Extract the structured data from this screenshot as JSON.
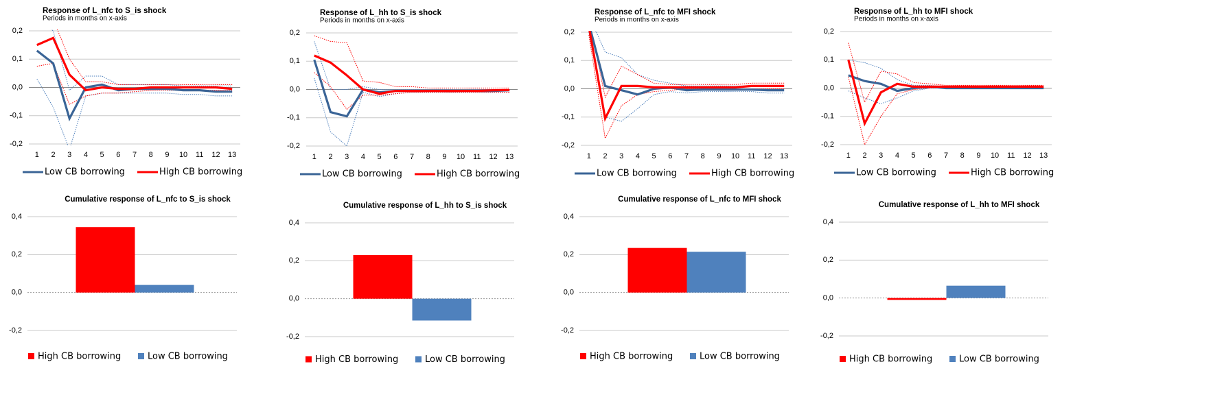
{
  "chart_data": [
    {
      "type": "line",
      "title": "Response  of L_nfc to S_is shock",
      "subtitle": "Periods in months on x-axis",
      "categories": [
        "1",
        "2",
        "3",
        "4",
        "5",
        "6",
        "7",
        "8",
        "9",
        "10",
        "11",
        "12",
        "13"
      ],
      "ylim": [
        -0.2,
        0.2
      ],
      "yticks": [
        {
          "value": -0.2,
          "label": "-0,2"
        },
        {
          "value": -0.1,
          "label": "-0,1"
        },
        {
          "value": 0,
          "label": "0,0"
        },
        {
          "value": 0.1,
          "label": "0,1"
        },
        {
          "value": 0.2,
          "label": "0,2"
        }
      ],
      "grid": true,
      "series": [
        {
          "color": "#4f81bd",
          "line_style": "dotted",
          "values": [
            0.24,
            0.2,
            -0.01,
            0.04,
            0.04,
            0.01,
            0.01,
            0.01,
            0.01,
            0.005,
            0.005,
            0.005,
            0.005
          ]
        },
        {
          "color": "#4f81bd",
          "line_style": "dotted",
          "values": [
            0.03,
            -0.07,
            -0.22,
            -0.03,
            -0.02,
            -0.02,
            -0.02,
            -0.02,
            -0.02,
            -0.025,
            -0.025,
            -0.03,
            -0.03
          ]
        },
        {
          "color": "#ff0000",
          "line_style": "dotted",
          "values": [
            0.21,
            0.24,
            0.1,
            0.02,
            0.02,
            0.01,
            0.01,
            0.01,
            0.01,
            0.01,
            0.01,
            0.01,
            0.01
          ]
        },
        {
          "color": "#ff0000",
          "line_style": "dotted",
          "values": [
            0.075,
            0.085,
            -0.06,
            -0.03,
            -0.02,
            -0.02,
            -0.015,
            -0.01,
            -0.01,
            -0.01,
            -0.01,
            -0.01,
            -0.01
          ]
        },
        {
          "name": "Low CB borrowing",
          "color": "#3a6496",
          "line_style": "solid",
          "values": [
            0.13,
            0.085,
            -0.11,
            0.0,
            0.01,
            -0.01,
            -0.005,
            -0.005,
            -0.005,
            -0.01,
            -0.01,
            -0.015,
            -0.015
          ]
        },
        {
          "name": "High CB borrowing",
          "color": "#ff0000",
          "line_style": "solid",
          "values": [
            0.15,
            0.175,
            0.045,
            -0.01,
            0.0,
            -0.005,
            -0.005,
            0,
            0,
            0,
            0,
            0,
            -0.005
          ]
        }
      ]
    },
    {
      "type": "line",
      "title": "Response  of L_hh to S_is shock",
      "subtitle": "Periods in months on x-axis",
      "categories": [
        "1",
        "2",
        "3",
        "4",
        "5",
        "6",
        "7",
        "8",
        "9",
        "10",
        "11",
        "12",
        "13"
      ],
      "ylim": [
        -0.2,
        0.2
      ],
      "yticks": [
        {
          "value": -0.2,
          "label": "-0,2"
        },
        {
          "value": -0.1,
          "label": "-0,1"
        },
        {
          "value": 0,
          "label": "0,0"
        },
        {
          "value": 0.1,
          "label": "0,1"
        },
        {
          "value": 0.2,
          "label": "0,2"
        }
      ],
      "grid": true,
      "series": [
        {
          "color": "#4f81bd",
          "line_style": "dotted",
          "values": [
            0.17,
            0.0,
            0.0,
            0.01,
            0.0,
            0,
            0,
            0,
            0,
            0,
            0,
            0,
            0
          ]
        },
        {
          "color": "#4f81bd",
          "line_style": "dotted",
          "values": [
            0.04,
            -0.15,
            -0.2,
            -0.01,
            -0.025,
            -0.015,
            -0.01,
            -0.01,
            -0.01,
            -0.01,
            -0.01,
            -0.01,
            -0.01
          ]
        },
        {
          "color": "#ff0000",
          "line_style": "dotted",
          "values": [
            0.19,
            0.17,
            0.165,
            0.03,
            0.025,
            0.01,
            0.01,
            0.005,
            0.005,
            0.005,
            0.005,
            0.005,
            0.005
          ]
        },
        {
          "color": "#ff0000",
          "line_style": "dotted",
          "values": [
            0.06,
            0.01,
            -0.07,
            -0.02,
            -0.02,
            -0.015,
            -0.01,
            -0.01,
            -0.01,
            -0.01,
            -0.01,
            -0.01,
            -0.01
          ]
        },
        {
          "name": "Low CB borrowing",
          "color": "#3a6496",
          "line_style": "solid",
          "values": [
            0.105,
            -0.08,
            -0.095,
            0.0,
            -0.01,
            -0.005,
            -0.005,
            -0.005,
            -0.005,
            -0.005,
            -0.005,
            -0.005,
            -0.003
          ]
        },
        {
          "name": "High CB borrowing",
          "color": "#ff0000",
          "line_style": "solid",
          "values": [
            0.12,
            0.095,
            0.05,
            0.0,
            -0.015,
            -0.005,
            -0.005,
            -0.005,
            -0.005,
            -0.005,
            -0.005,
            -0.003,
            -0.002
          ]
        }
      ]
    },
    {
      "type": "line",
      "title": "Response  of L_nfc to MFI shock",
      "subtitle": "Periods in months on x-axis",
      "categories": [
        "1",
        "2",
        "3",
        "4",
        "5",
        "6",
        "7",
        "8",
        "9",
        "10",
        "11",
        "12",
        "13"
      ],
      "ylim": [
        -0.2,
        0.2
      ],
      "yticks": [
        {
          "value": -0.2,
          "label": "-0,2"
        },
        {
          "value": -0.1,
          "label": "-0,1"
        },
        {
          "value": 0,
          "label": "0,0"
        },
        {
          "value": 0.1,
          "label": "0,1"
        },
        {
          "value": 0.2,
          "label": "0,2"
        }
      ],
      "grid": true,
      "series": [
        {
          "color": "#4f81bd",
          "line_style": "dotted",
          "values": [
            0.26,
            0.13,
            0.11,
            0.05,
            0.03,
            0.02,
            0.01,
            0.01,
            0.01,
            0.01,
            0.01,
            0.01,
            0.01
          ]
        },
        {
          "color": "#4f81bd",
          "line_style": "dotted",
          "values": [
            0.2,
            -0.1,
            -0.115,
            -0.07,
            -0.02,
            -0.01,
            -0.015,
            -0.01,
            -0.01,
            -0.01,
            -0.01,
            -0.015,
            -0.015
          ]
        },
        {
          "color": "#ff0000",
          "line_style": "dotted",
          "values": [
            0.25,
            -0.03,
            0.08,
            0.05,
            0.02,
            0.015,
            0.015,
            0.015,
            0.015,
            0.015,
            0.02,
            0.02,
            0.02
          ]
        },
        {
          "color": "#ff0000",
          "line_style": "dotted",
          "values": [
            0.19,
            -0.175,
            -0.06,
            -0.02,
            -0.01,
            -0.005,
            0,
            0,
            0,
            0,
            0,
            0,
            0
          ]
        },
        {
          "name": "Low CB borrowing",
          "color": "#3a6496",
          "line_style": "solid",
          "values": [
            0.23,
            0.01,
            -0.005,
            -0.02,
            0.0,
            0.005,
            -0.005,
            -0.003,
            -0.003,
            -0.003,
            -0.003,
            -0.005,
            -0.005
          ]
        },
        {
          "name": "High CB borrowing",
          "color": "#ff0000",
          "line_style": "solid",
          "values": [
            0.22,
            -0.105,
            0.01,
            0.01,
            0.005,
            0.005,
            0.005,
            0.005,
            0.005,
            0.005,
            0.01,
            0.01,
            0.01
          ]
        }
      ]
    },
    {
      "type": "line",
      "title": "Response  of L_hh to MFI shock",
      "subtitle": "Periods in months on x-axis",
      "categories": [
        "1",
        "2",
        "3",
        "4",
        "5",
        "6",
        "7",
        "8",
        "9",
        "10",
        "11",
        "12",
        "13"
      ],
      "ylim": [
        -0.2,
        0.2
      ],
      "yticks": [
        {
          "value": -0.2,
          "label": "-0,2"
        },
        {
          "value": -0.1,
          "label": "-0,1"
        },
        {
          "value": 0,
          "label": "0,0"
        },
        {
          "value": 0.1,
          "label": "0,1"
        },
        {
          "value": 0.2,
          "label": "0,2"
        }
      ],
      "grid": true,
      "series": [
        {
          "color": "#4f81bd",
          "line_style": "dotted",
          "values": [
            0.1,
            0.09,
            0.07,
            0.03,
            0.01,
            0.01,
            0.005,
            0.005,
            0.005,
            0.005,
            0.005,
            0.005,
            0.005
          ]
        },
        {
          "color": "#4f81bd",
          "line_style": "dotted",
          "values": [
            -0.01,
            -0.035,
            -0.055,
            -0.035,
            -0.01,
            0,
            0,
            0,
            0,
            0,
            0,
            0,
            0
          ]
        },
        {
          "color": "#ff0000",
          "line_style": "dotted",
          "values": [
            0.16,
            -0.05,
            0.06,
            0.05,
            0.02,
            0.015,
            0.01,
            0.01,
            0.01,
            0.01,
            0.01,
            0.01,
            0.01
          ]
        },
        {
          "color": "#ff0000",
          "line_style": "dotted",
          "values": [
            0.04,
            -0.2,
            -0.1,
            -0.02,
            -0.005,
            0,
            0,
            0,
            0,
            0,
            0,
            0,
            0
          ]
        },
        {
          "name": "Low CB borrowing",
          "color": "#3a6496",
          "line_style": "solid",
          "values": [
            0.045,
            0.025,
            0.015,
            -0.01,
            0.0,
            0.005,
            0.0,
            0,
            0,
            0,
            0,
            0,
            0
          ]
        },
        {
          "name": "High CB borrowing",
          "color": "#ff0000",
          "line_style": "solid",
          "values": [
            0.1,
            -0.125,
            -0.015,
            0.015,
            0.005,
            0.005,
            0.005,
            0.005,
            0.005,
            0.005,
            0.005,
            0.005,
            0.005
          ]
        }
      ]
    },
    {
      "type": "bar",
      "title": "Cumulative response  of L_nfc to S_is shock",
      "ylim": [
        -0.2,
        0.4
      ],
      "yticks": [
        {
          "value": -0.2,
          "label": "-0,2"
        },
        {
          "value": 0,
          "label": "0,0"
        },
        {
          "value": 0.2,
          "label": "0,2"
        },
        {
          "value": 0.4,
          "label": "0,4"
        }
      ],
      "grid": true,
      "series": [
        {
          "name": "High CB borrowing",
          "color": "#ff0000",
          "values": [
            0.345
          ]
        },
        {
          "name": "Low CB borrowing",
          "color": "#4f81bd",
          "values": [
            0.04
          ]
        }
      ]
    },
    {
      "type": "bar",
      "title": "Cumulative response  of L_hh to S_is shock",
      "ylim": [
        -0.2,
        0.4
      ],
      "yticks": [
        {
          "value": -0.2,
          "label": "-0,2"
        },
        {
          "value": 0,
          "label": "0,0"
        },
        {
          "value": 0.2,
          "label": "0,2"
        },
        {
          "value": 0.4,
          "label": "0,4"
        }
      ],
      "grid": true,
      "series": [
        {
          "name": "High CB borrowing",
          "color": "#ff0000",
          "values": [
            0.23
          ]
        },
        {
          "name": "Low CB borrowing",
          "color": "#4f81bd",
          "values": [
            -0.115
          ]
        }
      ]
    },
    {
      "type": "bar",
      "title": "Cumulative response  of L_nfc to MFI shock",
      "ylim": [
        -0.2,
        0.4
      ],
      "yticks": [
        {
          "value": -0.2,
          "label": "-0,2"
        },
        {
          "value": 0,
          "label": "0,0"
        },
        {
          "value": 0.2,
          "label": "0,2"
        },
        {
          "value": 0.4,
          "label": "0,4"
        }
      ],
      "grid": true,
      "series": [
        {
          "name": "High CB borrowing",
          "color": "#ff0000",
          "values": [
            0.235
          ]
        },
        {
          "name": "Low CB borrowing",
          "color": "#4f81bd",
          "values": [
            0.215
          ]
        }
      ]
    },
    {
      "type": "bar",
      "title": "Cumulative response  of L_hh to MFI shock",
      "ylim": [
        -0.2,
        0.4
      ],
      "yticks": [
        {
          "value": -0.2,
          "label": "-0,2"
        },
        {
          "value": 0,
          "label": "0,0"
        },
        {
          "value": 0.2,
          "label": "0,2"
        },
        {
          "value": 0.4,
          "label": "0,4"
        }
      ],
      "grid": true,
      "series": [
        {
          "name": "High CB borrowing",
          "color": "#ff0000",
          "values": [
            -0.01
          ]
        },
        {
          "name": "Low CB borrowing",
          "color": "#4f81bd",
          "values": [
            0.065
          ]
        }
      ]
    }
  ]
}
